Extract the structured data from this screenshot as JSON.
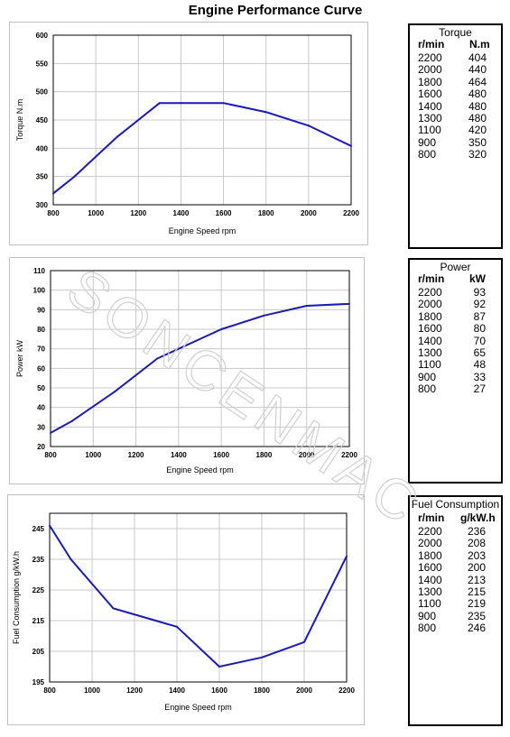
{
  "page_title": "Engine Performance Curve",
  "watermark": "SONCENMAC",
  "colors": {
    "line": "#1a1ab8",
    "grid": "#c8c8c8",
    "frame": "#000000"
  },
  "chart_data": [
    {
      "type": "line",
      "xlabel": "Engine Speed rpm",
      "ylabel": "Torque N.m",
      "x": [
        800,
        900,
        1100,
        1300,
        1400,
        1600,
        1800,
        2000,
        2200
      ],
      "y": [
        320,
        350,
        420,
        480,
        480,
        480,
        464,
        440,
        404
      ],
      "xlim": [
        800,
        2200
      ],
      "ylim": [
        300,
        600
      ],
      "xticks": [
        800,
        1000,
        1200,
        1400,
        1600,
        1800,
        2000,
        2200
      ],
      "yticks": [
        300,
        350,
        400,
        450,
        500,
        550,
        600
      ],
      "grid": true
    },
    {
      "type": "line",
      "xlabel": "Engine Speed rpm",
      "ylabel": "Power kW",
      "x": [
        800,
        900,
        1100,
        1300,
        1400,
        1600,
        1800,
        2000,
        2200
      ],
      "y": [
        27,
        33,
        48,
        65,
        70,
        80,
        87,
        92,
        93
      ],
      "xlim": [
        800,
        2200
      ],
      "ylim": [
        20,
        110
      ],
      "xticks": [
        800,
        1000,
        1200,
        1400,
        1600,
        1800,
        2000,
        2200
      ],
      "yticks": [
        20,
        30,
        40,
        50,
        60,
        70,
        80,
        90,
        100,
        110
      ],
      "grid": true
    },
    {
      "type": "line",
      "xlabel": "Engine Speed rpm",
      "ylabel": "Fuel Consumption g/kW.h",
      "x": [
        800,
        900,
        1100,
        1300,
        1400,
        1600,
        1800,
        2000,
        2200
      ],
      "y": [
        246,
        235,
        219,
        215,
        213,
        200,
        203,
        208,
        236
      ],
      "xlim": [
        800,
        2200
      ],
      "ylim": [
        195,
        250
      ],
      "xticks": [
        800,
        1000,
        1200,
        1400,
        1600,
        1800,
        2000,
        2200
      ],
      "yticks": [
        195,
        205,
        215,
        225,
        235,
        245
      ],
      "grid": true
    }
  ],
  "tables": [
    {
      "title": "Torque",
      "col1": "r/min",
      "col2": "N.m",
      "rows": [
        [
          "2200",
          "404"
        ],
        [
          "2000",
          "440"
        ],
        [
          "1800",
          "464"
        ],
        [
          "1600",
          "480"
        ],
        [
          "1400",
          "480"
        ],
        [
          "1300",
          "480"
        ],
        [
          "1100",
          "420"
        ],
        [
          "900",
          "350"
        ],
        [
          "800",
          "320"
        ]
      ]
    },
    {
      "title": "Power",
      "col1": "r/min",
      "col2": "kW",
      "rows": [
        [
          "2200",
          "93"
        ],
        [
          "2000",
          "92"
        ],
        [
          "1800",
          "87"
        ],
        [
          "1600",
          "80"
        ],
        [
          "1400",
          "70"
        ],
        [
          "1300",
          "65"
        ],
        [
          "1100",
          "48"
        ],
        [
          "900",
          "33"
        ],
        [
          "800",
          "27"
        ]
      ]
    },
    {
      "title": "Fuel Consumption",
      "col1": "r/min",
      "col2": "g/kW.h",
      "rows": [
        [
          "2200",
          "236"
        ],
        [
          "2000",
          "208"
        ],
        [
          "1800",
          "203"
        ],
        [
          "1600",
          "200"
        ],
        [
          "1400",
          "213"
        ],
        [
          "1300",
          "215"
        ],
        [
          "1100",
          "219"
        ],
        [
          "900",
          "235"
        ],
        [
          "800",
          "246"
        ]
      ]
    }
  ]
}
